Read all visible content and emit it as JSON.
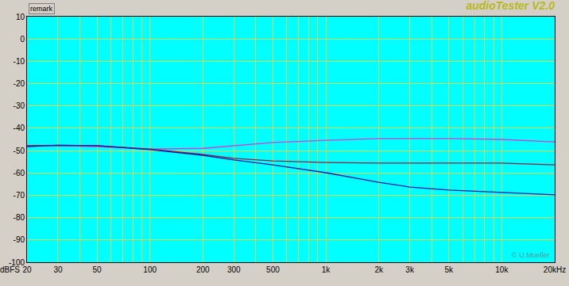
{
  "chart_data": {
    "type": "line",
    "title": "audioTester V2.0",
    "ylabel": "dBFS",
    "annotations": [
      {
        "text": "remark"
      },
      {
        "text": "© U.Mueller"
      }
    ],
    "log": "x",
    "grid": true,
    "x": [
      20,
      30,
      50,
      100,
      200,
      300,
      500,
      1000,
      2000,
      3000,
      5000,
      10000,
      20000
    ],
    "series": [
      {
        "color": "#d040d0",
        "values": [
          -47.8,
          -47.8,
          -48.2,
          -49.3,
          -49.0,
          -47.8,
          -46.4,
          -45.4,
          -44.6,
          -44.6,
          -44.6,
          -45.0,
          -46.1
        ]
      },
      {
        "color": "#902040",
        "values": [
          -47.8,
          -47.6,
          -47.8,
          -49.3,
          -51.7,
          -53.5,
          -54.6,
          -55.3,
          -55.6,
          -55.6,
          -55.6,
          -55.6,
          -56.4
        ]
      },
      {
        "color": "#1a1aa8",
        "values": [
          -48.2,
          -47.6,
          -47.8,
          -49.6,
          -52.1,
          -54.2,
          -56.4,
          -59.9,
          -64.2,
          -66.3,
          -67.7,
          -68.8,
          -69.8
        ]
      }
    ],
    "xlim": [
      20,
      20000
    ],
    "xticks": [
      20,
      30,
      50,
      100,
      200,
      300,
      500,
      {
        "value": 1000,
        "label": "1k"
      },
      {
        "value": 2000,
        "label": "2k"
      },
      {
        "value": 3000,
        "label": "3k"
      },
      {
        "value": 5000,
        "label": "5k"
      },
      {
        "value": 10000,
        "label": "10k"
      },
      {
        "value": 20000,
        "label": "20kHz"
      }
    ],
    "ylim": [
      -100,
      10
    ],
    "yticks": [
      -100,
      -90,
      -80,
      -70,
      -60,
      -50,
      -40,
      -30,
      -20,
      -10,
      0,
      10
    ]
  }
}
